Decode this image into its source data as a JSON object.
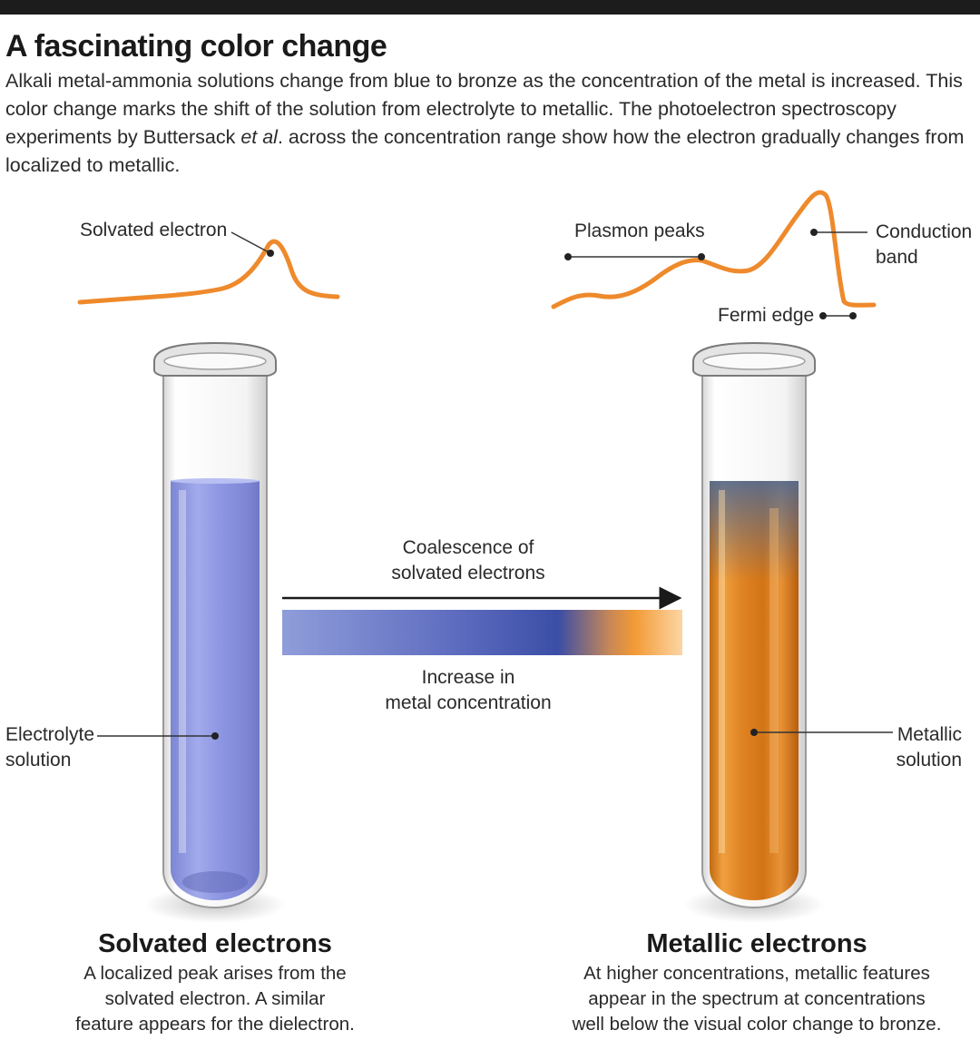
{
  "title": "A fascinating color change",
  "intro": {
    "part1": "Alkali metal-ammonia solutions change from blue to bronze as the concentration of the metal is increased. This color change marks the shift of the solution from electrolyte to metallic. The photoelectron spectroscopy experiments by Buttersack ",
    "italic": "et al",
    "part2": ". across the concentration range show how the electron gradually changes from localized to metallic."
  },
  "labels": {
    "solvated_electron": "Solvated electron",
    "plasmon_peaks": "Plasmon peaks",
    "conduction_band_line1": "Conduction",
    "conduction_band_line2": "band",
    "fermi_edge": "Fermi edge",
    "coalescence_line1": "Coalescence of",
    "coalescence_line2": "solvated electrons",
    "increase_line1": "Increase in",
    "increase_line2": "metal concentration",
    "electrolyte_line1": "Electrolyte",
    "electrolyte_line2": "solution",
    "metallic_line1": "Metallic",
    "metallic_line2": "solution"
  },
  "left_panel": {
    "heading": "Solvated electrons",
    "caption": [
      "A localized peak arises from the",
      "solvated electron. A similar",
      "feature appears for the dielectron."
    ]
  },
  "right_panel": {
    "heading": "Metallic electrons",
    "caption": [
      "At higher concentrations, metallic features",
      "appear in the spectrum at concentrations",
      "well below the visual color change to bronze."
    ]
  },
  "colors": {
    "spectrum_line": "#ee8a2c",
    "blue_solution": "#8e98e0",
    "bronze_solution": "#e08a1c",
    "gradient_blue_light": "#8b98d8",
    "gradient_blue_dark": "#3d4fa6",
    "gradient_orange": "#f5a23c"
  }
}
